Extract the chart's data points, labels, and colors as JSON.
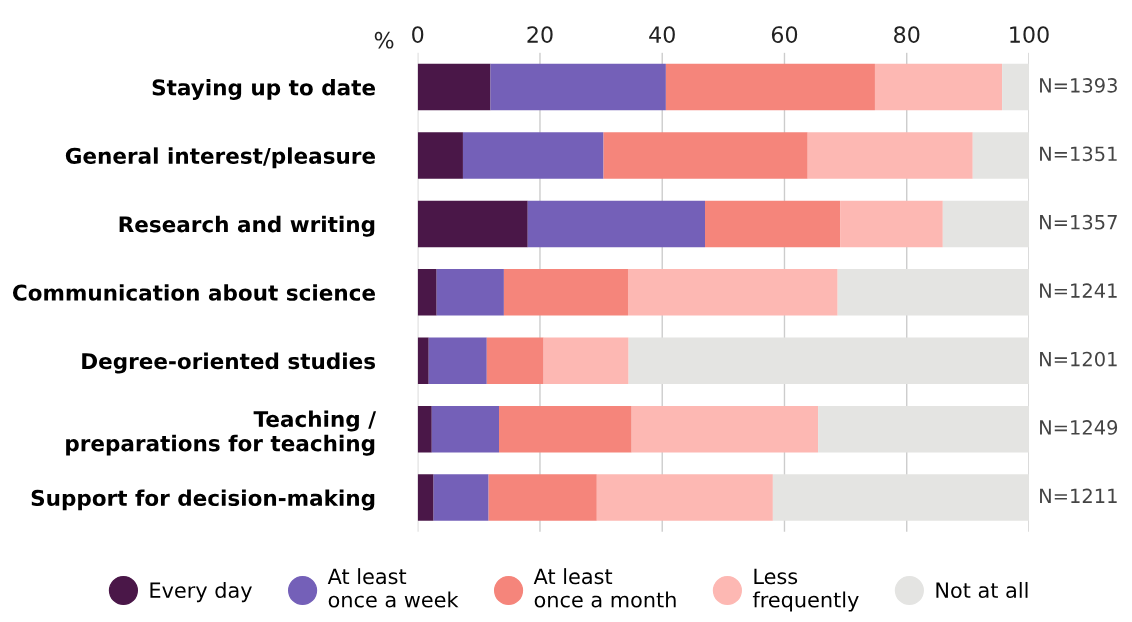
{
  "chart_data": {
    "type": "bar",
    "orientation": "horizontal",
    "stacked": true,
    "xlabel": "%",
    "categories": [
      "Staying up to date",
      "General interest/pleasure",
      "Research and writing",
      "Communication about science",
      "Degree-oriented studies",
      "Teaching /\npreparations for teaching",
      "Support for decision-making"
    ],
    "series": [
      {
        "name": "Every day",
        "color": "#4a1748",
        "values": [
          11.9,
          7.4,
          18.0,
          3.1,
          1.8,
          2.3,
          2.6
        ]
      },
      {
        "name": "At least\nonce a week",
        "color": "#7460b8",
        "values": [
          28.7,
          23.0,
          29.0,
          11.0,
          9.5,
          11.0,
          9.0
        ]
      },
      {
        "name": "At least\nonce a month",
        "color": "#f5857b",
        "values": [
          34.2,
          33.4,
          22.1,
          20.3,
          9.3,
          21.7,
          17.7
        ]
      },
      {
        "name": "Less\nfrequently",
        "color": "#fdb8b3",
        "values": [
          20.8,
          27.0,
          16.8,
          34.3,
          13.9,
          30.5,
          28.8
        ]
      },
      {
        "name": "Not at all",
        "color": "#e4e4e2",
        "values": [
          4.4,
          9.2,
          14.1,
          31.3,
          65.5,
          34.5,
          41.9
        ]
      }
    ],
    "xlim": [
      0,
      100
    ],
    "xticks": [
      0,
      20,
      40,
      60,
      80,
      100
    ],
    "grid": "x",
    "legend": "bottom",
    "marker": "circle",
    "annotations": [
      "N=1393",
      "N=1351",
      "N=1357",
      "N=1241",
      "N=1201",
      "N=1249",
      "N=1211"
    ]
  }
}
